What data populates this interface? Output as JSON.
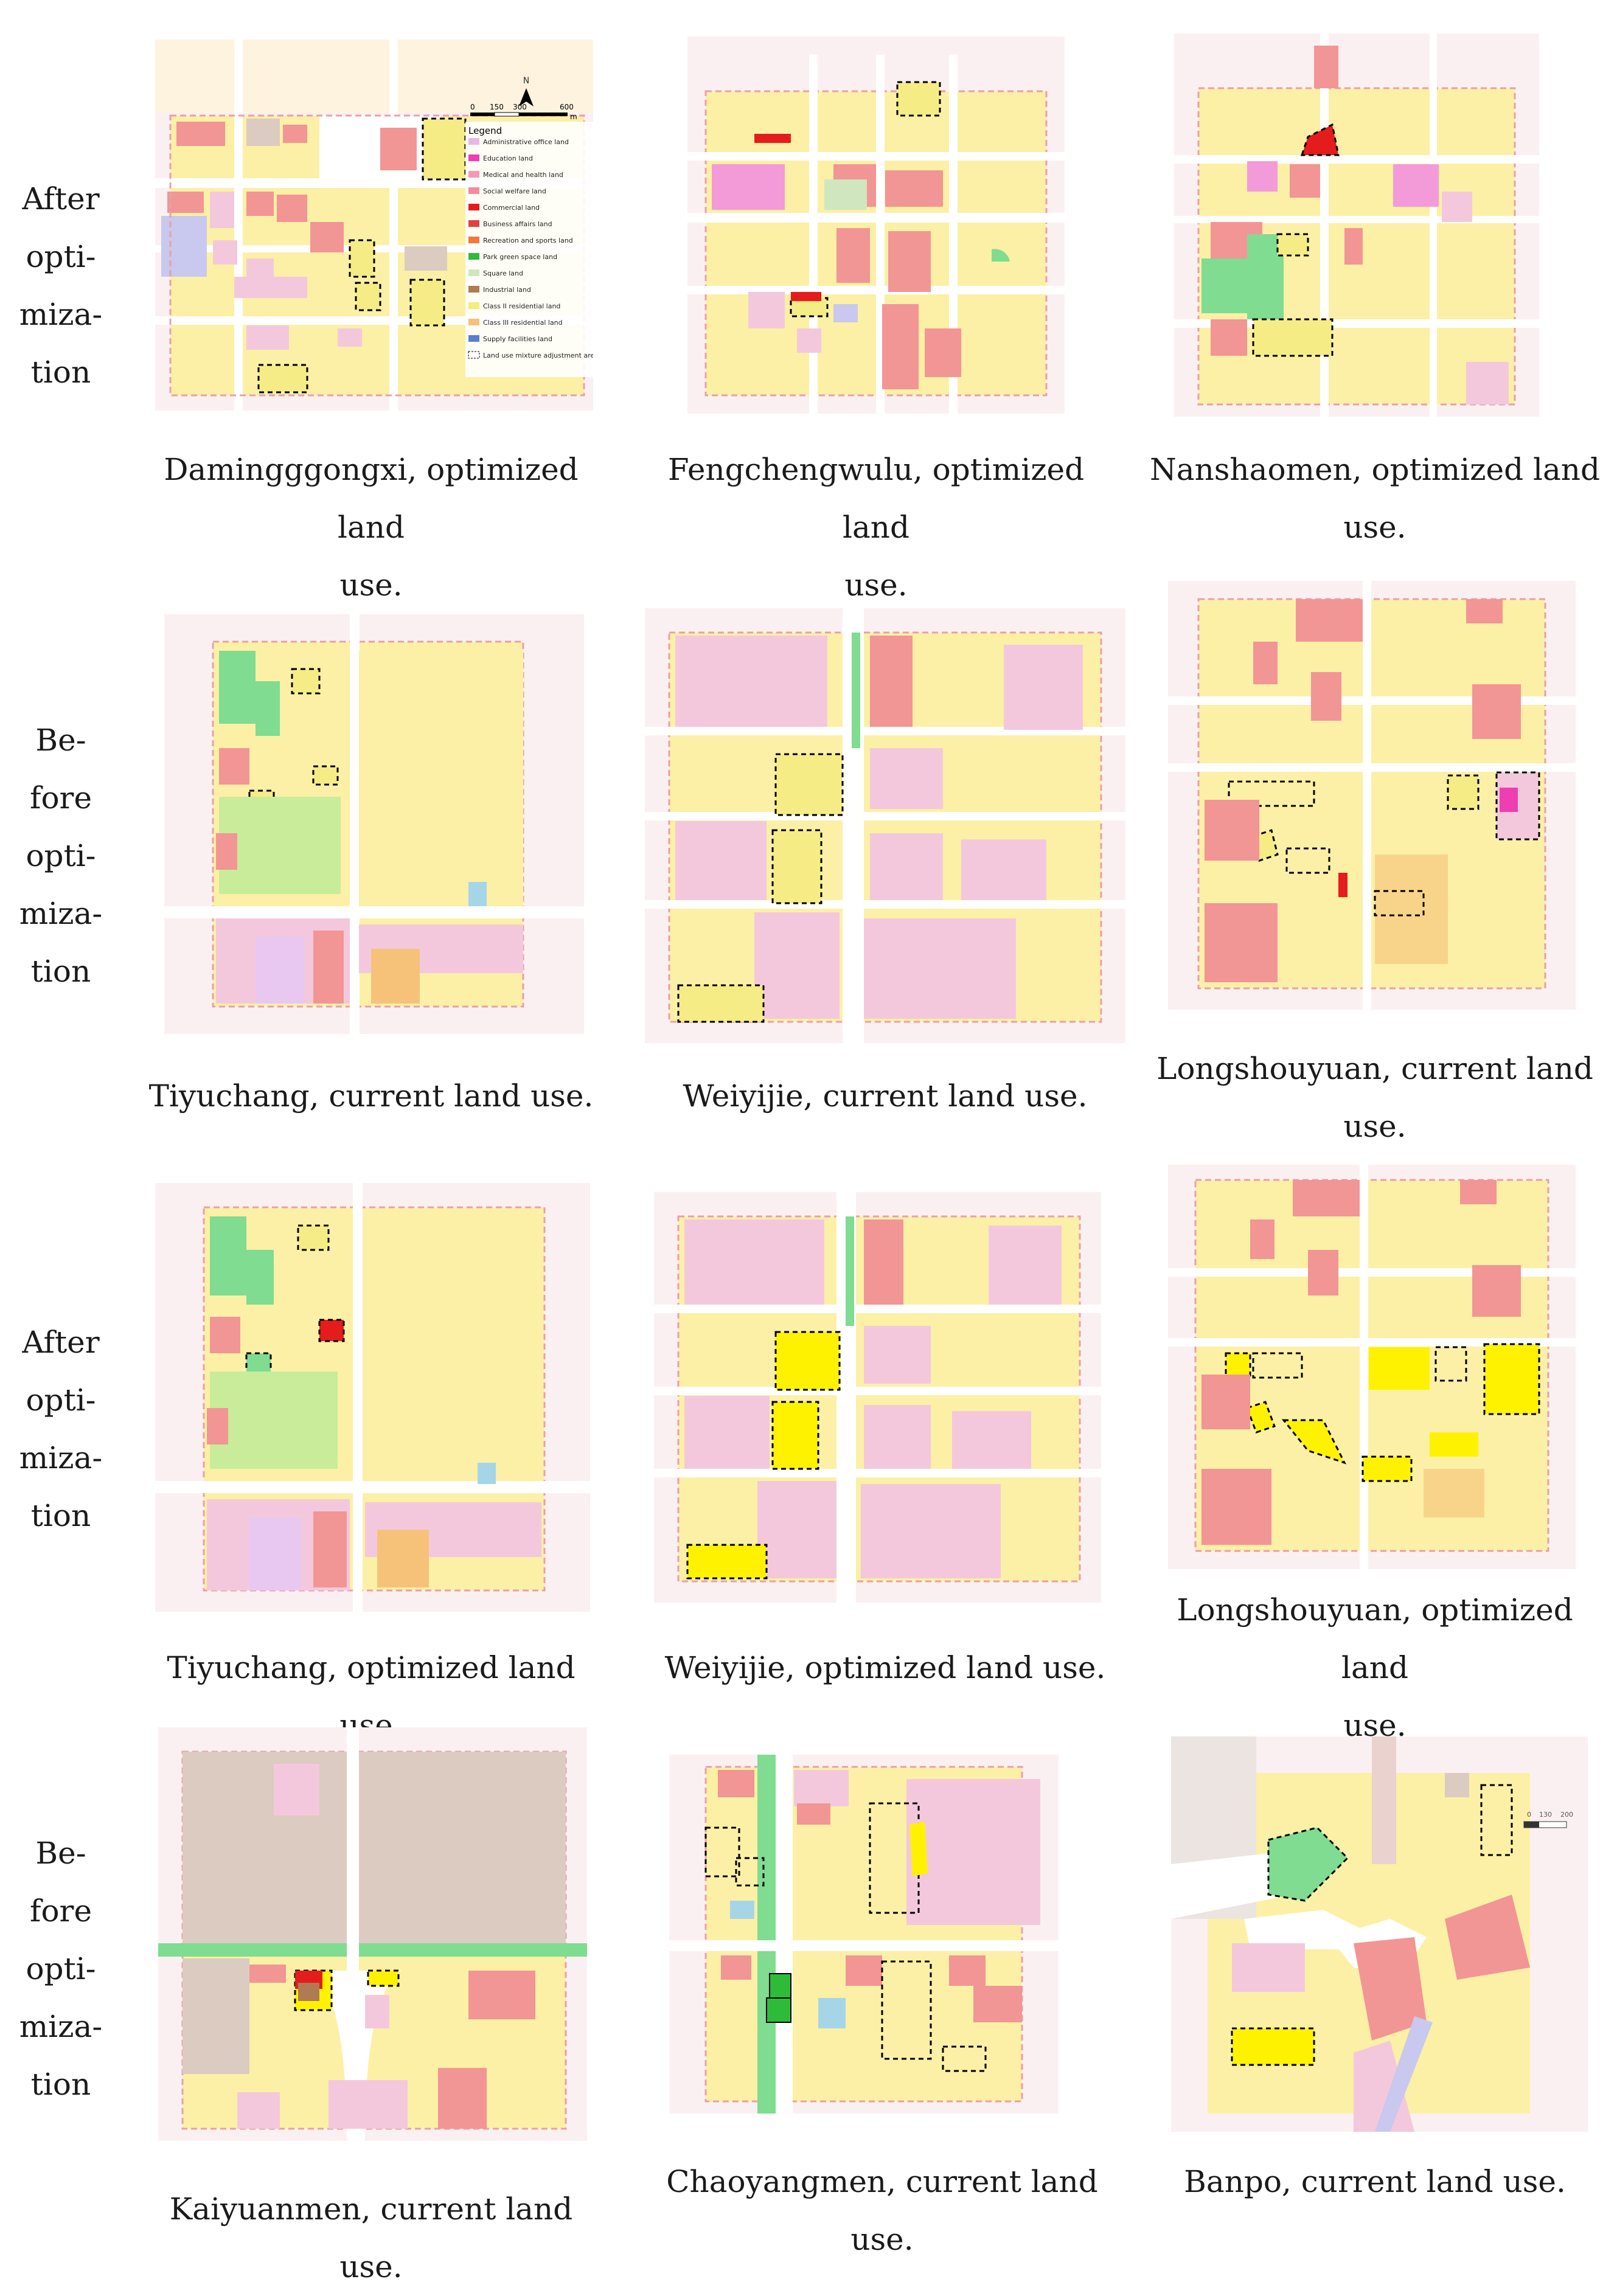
{
  "figure": {
    "rows": [
      {
        "id": "row1",
        "label_lines": [
          "After",
          "opti-",
          "miza-",
          "tion"
        ]
      },
      {
        "id": "row2",
        "label_lines": [
          "Be-",
          "fore",
          "opti-",
          "miza-",
          "tion"
        ]
      },
      {
        "id": "row3",
        "label_lines": [
          "After",
          "opti-",
          "miza-",
          "tion"
        ]
      },
      {
        "id": "row4",
        "label_lines": [
          "Be-",
          "fore",
          "opti-",
          "miza-",
          "tion"
        ]
      }
    ],
    "panels": [
      {
        "caption_lines": [
          "Damingggongxi, optimized land",
          "use."
        ]
      },
      {
        "caption_lines": [
          "Fengchengwulu, optimized land",
          "use."
        ]
      },
      {
        "caption_lines": [
          "Nanshaomen, optimized land",
          "use."
        ]
      },
      {
        "caption_lines": [
          "Tiyuchang, current land use."
        ]
      },
      {
        "caption_lines": [
          "Weiyijie, current land use."
        ]
      },
      {
        "caption_lines": [
          "Longshouyuan, current land",
          "use."
        ]
      },
      {
        "caption_lines": [
          "Tiyuchang, optimized land use."
        ]
      },
      {
        "caption_lines": [
          "Weiyijie, optimized land use."
        ]
      },
      {
        "caption_lines": [
          "Longshouyuan, optimized land",
          "use."
        ]
      },
      {
        "caption_lines": [
          "Kaiyuanmen, current land use."
        ]
      },
      {
        "caption_lines": [
          "Chaoyangmen, current land use."
        ]
      },
      {
        "caption_lines": [
          "Banpo, current land use."
        ]
      }
    ],
    "scale_bar": {
      "ticks": [
        "0",
        "150",
        "300",
        "600"
      ],
      "unit": "m",
      "north": "N"
    },
    "scale_bar_small": {
      "ticks": [
        "0",
        "130",
        "200"
      ]
    },
    "legend": {
      "title": "Legend",
      "items": [
        {
          "label": "Administrative office land",
          "color": "#e9b8e0"
        },
        {
          "label": "Education land",
          "color": "#ee3fb0"
        },
        {
          "label": "Medical and health land",
          "color": "#f49ab5"
        },
        {
          "label": "Social welfare land",
          "color": "#f48ca0"
        },
        {
          "label": "Commercial land",
          "color": "#e51c1c"
        },
        {
          "label": "Business affairs land",
          "color": "#e34040"
        },
        {
          "label": "Recreation and sports land",
          "color": "#f07a3a"
        },
        {
          "label": "Park green space land",
          "color": "#2fbb3a"
        },
        {
          "label": "Square land",
          "color": "#cfe6bf"
        },
        {
          "label": "Industrial land",
          "color": "#b07a55"
        },
        {
          "label": "Class II residential land",
          "color": "#f4ee7a"
        },
        {
          "label": "Class III residential land",
          "color": "#f6c27a"
        },
        {
          "label": "Supply facilities land",
          "color": "#5a7fd0"
        },
        {
          "label": "Land use mixture adjustment area",
          "color": "#ffffff"
        }
      ]
    },
    "colors": {
      "residential": "#fbf0a6",
      "residential_dark": "#f6ec86",
      "admin": "#f4c8dc",
      "commercial": "#f29595",
      "commercial_strong": "#e51c1c",
      "green": "#7fdc90",
      "green_strong": "#2fbb3a",
      "industrial": "#dccbc0",
      "highlight": "#fff200",
      "road": "#ffffff",
      "background": "#fbf0f1",
      "boundary": "#e8a0a8"
    }
  }
}
